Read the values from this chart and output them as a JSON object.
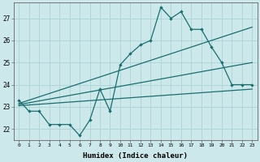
{
  "title": "",
  "xlabel": "Humidex (Indice chaleur)",
  "ylabel": "",
  "x_ticks": [
    0,
    1,
    2,
    3,
    4,
    5,
    6,
    7,
    8,
    9,
    10,
    11,
    12,
    13,
    14,
    15,
    16,
    17,
    18,
    19,
    20,
    21,
    22,
    23
  ],
  "xlim": [
    -0.5,
    23.5
  ],
  "ylim": [
    21.5,
    27.7
  ],
  "yticks": [
    22,
    23,
    24,
    25,
    26,
    27
  ],
  "bg_color": "#cce8ea",
  "grid_color": "#aad4d8",
  "line_color": "#1a6e6e",
  "main_series_x": [
    0,
    1,
    2,
    3,
    4,
    5,
    6,
    7,
    8,
    9,
    10,
    11,
    12,
    13,
    14,
    15,
    16,
    17,
    18,
    19,
    20,
    21,
    22,
    23
  ],
  "main_series_y": [
    23.3,
    22.8,
    22.8,
    22.2,
    22.2,
    22.2,
    21.7,
    22.4,
    23.8,
    22.8,
    24.9,
    25.4,
    25.8,
    26.0,
    27.5,
    27.0,
    27.3,
    26.5,
    26.5,
    25.7,
    25.0,
    24.0,
    24.0,
    24.0
  ],
  "trend_lines": [
    {
      "x": [
        0,
        23
      ],
      "y": [
        23.15,
        26.6
      ]
    },
    {
      "x": [
        0,
        23
      ],
      "y": [
        23.1,
        25.0
      ]
    },
    {
      "x": [
        0,
        23
      ],
      "y": [
        23.05,
        23.8
      ]
    }
  ]
}
